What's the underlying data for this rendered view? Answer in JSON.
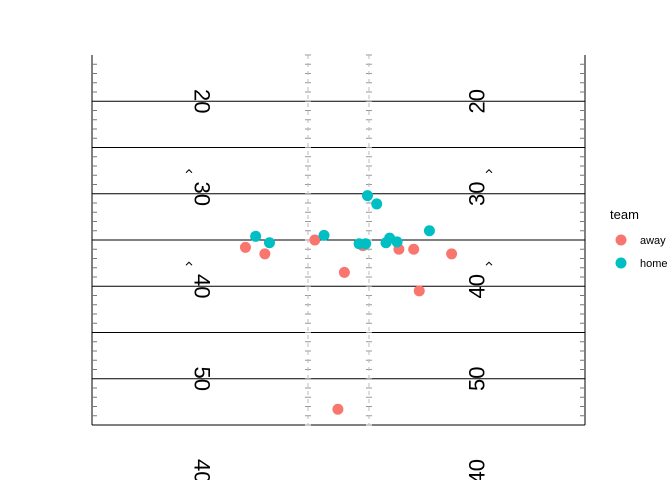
{
  "chart_data": {
    "type": "scatter",
    "title": "",
    "xlabel": "",
    "ylabel": "",
    "field": {
      "xlim": [
        0,
        53.33
      ],
      "ylim": [
        15,
        55
      ],
      "hash_x": [
        23.36,
        29.96
      ],
      "yard_lines": [
        20,
        25,
        30,
        35,
        40,
        45,
        50,
        55
      ],
      "yard_numbers": [
        {
          "y": 20,
          "label": "20"
        },
        {
          "y": 30,
          "label": "30"
        },
        {
          "y": 40,
          "label": "40"
        },
        {
          "y": 50,
          "label": "50"
        },
        {
          "y": 60,
          "label": "40"
        }
      ],
      "arrow_yards": [
        30,
        40
      ]
    },
    "legend": {
      "title": "team",
      "position": "right",
      "entries": [
        {
          "name": "away",
          "color": "#F8766D"
        },
        {
          "name": "home",
          "color": "#00BFC4"
        }
      ]
    },
    "series": [
      {
        "name": "away",
        "color": "#F8766D",
        "points": [
          {
            "x": 16.6,
            "y": 35.8
          },
          {
            "x": 18.7,
            "y": 36.5
          },
          {
            "x": 24.1,
            "y": 35.0
          },
          {
            "x": 27.3,
            "y": 38.5
          },
          {
            "x": 29.3,
            "y": 35.6
          },
          {
            "x": 33.2,
            "y": 36.0
          },
          {
            "x": 34.8,
            "y": 36.0
          },
          {
            "x": 35.4,
            "y": 40.5
          },
          {
            "x": 38.9,
            "y": 36.5
          },
          {
            "x": 26.6,
            "y": 53.3
          }
        ]
      },
      {
        "name": "home",
        "color": "#00BFC4",
        "points": [
          {
            "x": 17.7,
            "y": 34.6
          },
          {
            "x": 19.2,
            "y": 35.3
          },
          {
            "x": 25.1,
            "y": 34.5
          },
          {
            "x": 28.9,
            "y": 35.4
          },
          {
            "x": 29.6,
            "y": 35.4
          },
          {
            "x": 29.8,
            "y": 30.2
          },
          {
            "x": 30.8,
            "y": 31.1
          },
          {
            "x": 31.8,
            "y": 35.3
          },
          {
            "x": 32.2,
            "y": 34.8
          },
          {
            "x": 33.0,
            "y": 35.2
          },
          {
            "x": 36.5,
            "y": 34.0
          }
        ]
      }
    ]
  }
}
